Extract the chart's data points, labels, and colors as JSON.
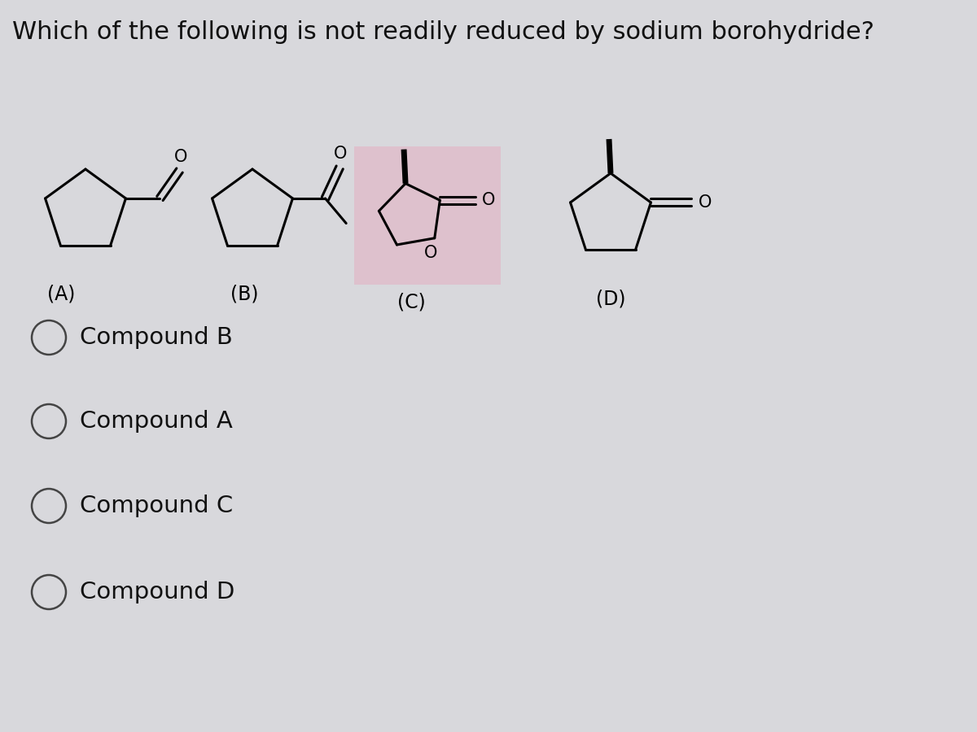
{
  "title": "Which of the following is not readily reduced by sodium borohydride?",
  "title_fontsize": 22,
  "bg_color": "#d8d8dc",
  "text_color": "#111111",
  "options": [
    "Compound B",
    "Compound A",
    "Compound C",
    "Compound D"
  ],
  "highlight_color": "#e8a0b8",
  "lw": 2.2,
  "lw_bold": 5.0,
  "ring_size": 0.52
}
